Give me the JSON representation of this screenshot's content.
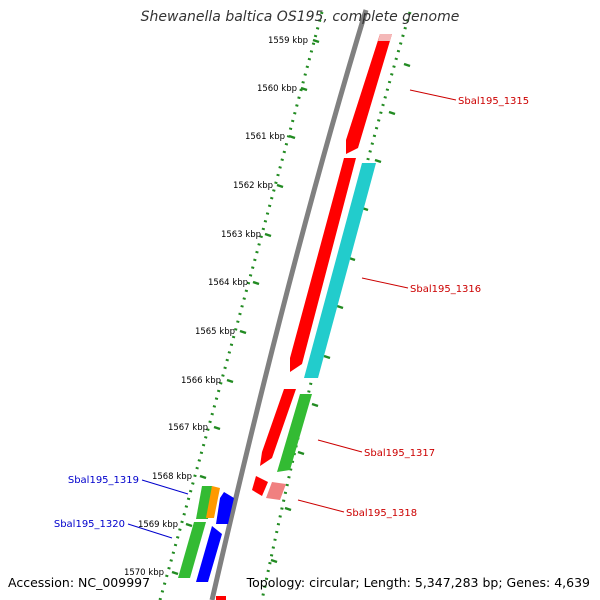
{
  "title": "Shewanella baltica OS195, complete genome",
  "footer": {
    "accession": "Accession: NC_009997",
    "summary": "Topology: circular; Length: 5,347,283 bp; Genes: 4,639"
  },
  "colors": {
    "backbone": "#808080",
    "tick": "#228B22",
    "forward_label": "#cc0000",
    "reverse_label": "#0000cc",
    "red": "#ff0000",
    "cyan": "#22cccc",
    "green": "#33bb33",
    "blue": "#0000ff",
    "orange": "#ff9900",
    "pink": "#f08080"
  },
  "ticks": [
    "1559 kbp",
    "1560 kbp",
    "1561 kbp",
    "1562 kbp",
    "1563 kbp",
    "1564 kbp",
    "1565 kbp",
    "1566 kbp",
    "1567 kbp",
    "1568 kbp",
    "1569 kbp",
    "1570 kbp"
  ],
  "gene_labels": [
    {
      "text": "Sbal195_1315",
      "strand": "forward"
    },
    {
      "text": "Sbal195_1316",
      "strand": "forward"
    },
    {
      "text": "Sbal195_1317",
      "strand": "forward"
    },
    {
      "text": "Sbal195_1318",
      "strand": "forward"
    },
    {
      "text": "Sbal195_1319",
      "strand": "reverse"
    },
    {
      "text": "Sbal195_1320",
      "strand": "reverse"
    }
  ]
}
